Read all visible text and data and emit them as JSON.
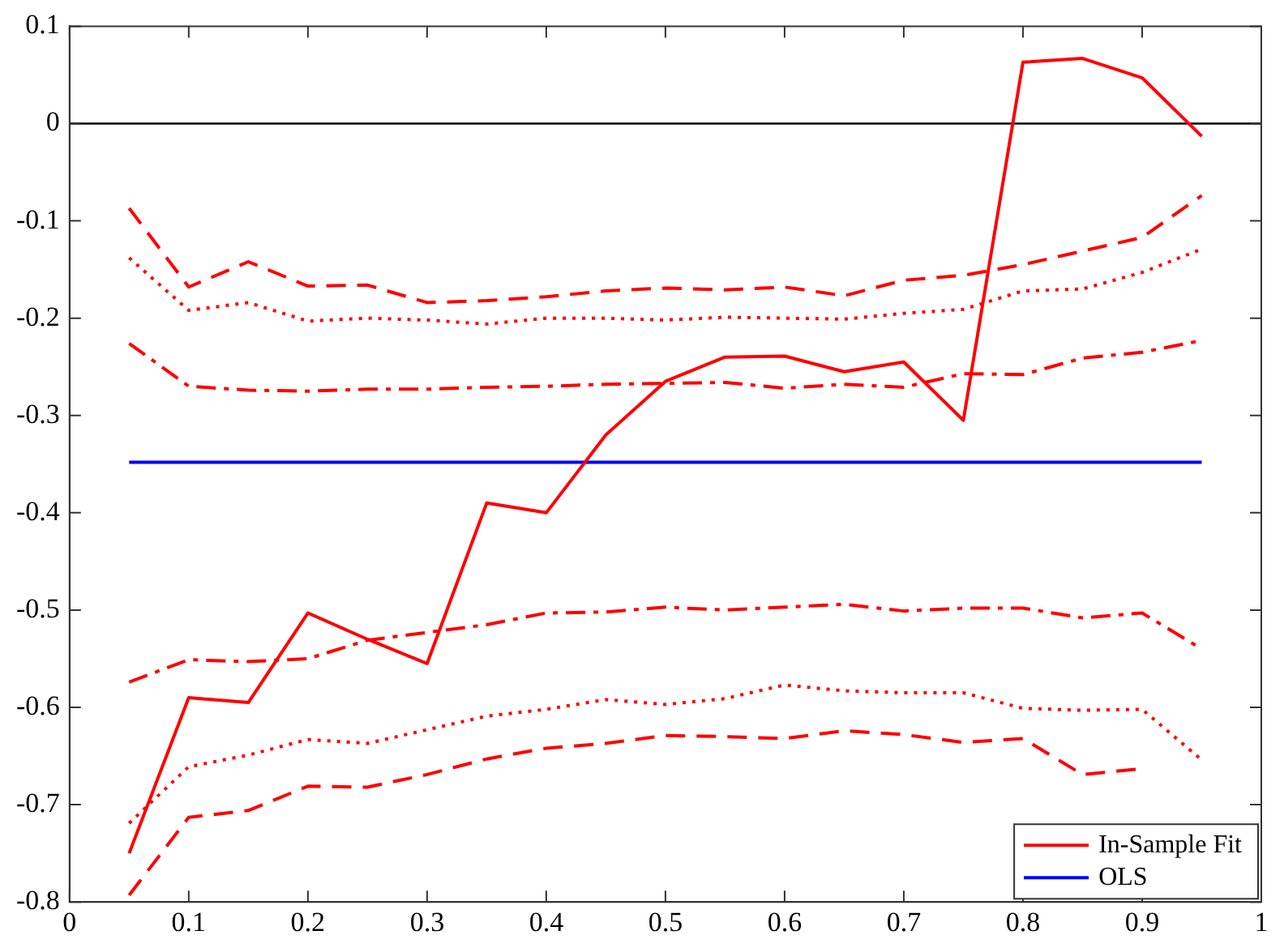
{
  "chart_data": {
    "type": "line",
    "x": [
      0.05,
      0.1,
      0.15,
      0.2,
      0.25,
      0.3,
      0.35,
      0.4,
      0.45,
      0.5,
      0.55,
      0.6,
      0.65,
      0.7,
      0.75,
      0.8,
      0.85,
      0.9,
      0.95
    ],
    "series": [
      {
        "name": "In-Sample Fit",
        "color": "#ff0000",
        "line_style": "solid",
        "values": [
          -0.75,
          -0.59,
          -0.595,
          -0.503,
          -0.53,
          -0.555,
          -0.39,
          -0.4,
          -0.32,
          -0.265,
          -0.24,
          -0.239,
          -0.255,
          -0.245,
          -0.305,
          0.063,
          0.067,
          0.047,
          -0.013
        ]
      },
      {
        "name": "OLS",
        "color": "#0000ff",
        "line_style": "solid",
        "values": [
          -0.348,
          -0.348,
          -0.348,
          -0.348,
          -0.348,
          -0.348,
          -0.348,
          -0.348,
          -0.348,
          -0.348,
          -0.348,
          -0.348,
          -0.348,
          -0.348,
          -0.348,
          -0.348,
          -0.348,
          -0.348,
          -0.348
        ]
      },
      {
        "color": "#ff0000",
        "line_style": "dashed",
        "values": [
          -0.087,
          -0.168,
          -0.142,
          -0.167,
          -0.166,
          -0.184,
          -0.182,
          -0.178,
          -0.172,
          -0.169,
          -0.171,
          -0.168,
          -0.177,
          -0.161,
          -0.156,
          -0.145,
          -0.131,
          -0.117,
          -0.074
        ]
      },
      {
        "color": "#ff0000",
        "line_style": "dotted",
        "values": [
          -0.138,
          -0.192,
          -0.184,
          -0.203,
          -0.2,
          -0.202,
          -0.206,
          -0.2,
          -0.2,
          -0.202,
          -0.199,
          -0.2,
          -0.201,
          -0.195,
          -0.191,
          -0.172,
          -0.17,
          -0.153,
          -0.129
        ]
      },
      {
        "color": "#ff0000",
        "line_style": "dashdot",
        "values": [
          -0.226,
          -0.27,
          -0.274,
          -0.275,
          -0.273,
          -0.273,
          -0.271,
          -0.27,
          -0.268,
          -0.267,
          -0.266,
          -0.272,
          -0.268,
          -0.271,
          -0.257,
          -0.258,
          -0.241,
          -0.235,
          -0.223
        ]
      },
      {
        "color": "#ff0000",
        "line_style": "dashdot",
        "values": [
          -0.574,
          -0.551,
          -0.553,
          -0.55,
          -0.531,
          -0.523,
          -0.515,
          -0.503,
          -0.502,
          -0.497,
          -0.5,
          -0.497,
          -0.494,
          -0.501,
          -0.498,
          -0.498,
          -0.508,
          -0.503,
          -0.54
        ]
      },
      {
        "color": "#ff0000",
        "line_style": "dotted",
        "values": [
          -0.719,
          -0.661,
          -0.649,
          -0.633,
          -0.637,
          -0.623,
          -0.609,
          -0.602,
          -0.592,
          -0.597,
          -0.591,
          -0.577,
          -0.583,
          -0.585,
          -0.585,
          -0.601,
          -0.603,
          -0.602,
          -0.654
        ]
      },
      {
        "color": "#ff0000",
        "line_style": "dashed",
        "values": [
          -0.793,
          -0.713,
          -0.706,
          -0.681,
          -0.682,
          -0.669,
          -0.653,
          -0.642,
          -0.637,
          -0.629,
          -0.63,
          -0.632,
          -0.624,
          -0.628,
          -0.636,
          -0.632,
          -0.669,
          -0.663,
          null
        ]
      }
    ],
    "xlim": [
      0,
      1
    ],
    "xticks": [
      0,
      0.1,
      0.2,
      0.3,
      0.4,
      0.5,
      0.6,
      0.7,
      0.8,
      0.9,
      1
    ],
    "ylim": [
      -0.8,
      0.1
    ],
    "yticks": [
      -0.8,
      -0.7,
      -0.6,
      -0.5,
      -0.4,
      -0.3,
      -0.2,
      -0.1,
      0,
      0.1
    ],
    "ref_lines": [
      {
        "axis": "y",
        "value": 0,
        "color": "#000000"
      }
    ],
    "grid": false,
    "legend": "bottom right",
    "marker": "none"
  }
}
